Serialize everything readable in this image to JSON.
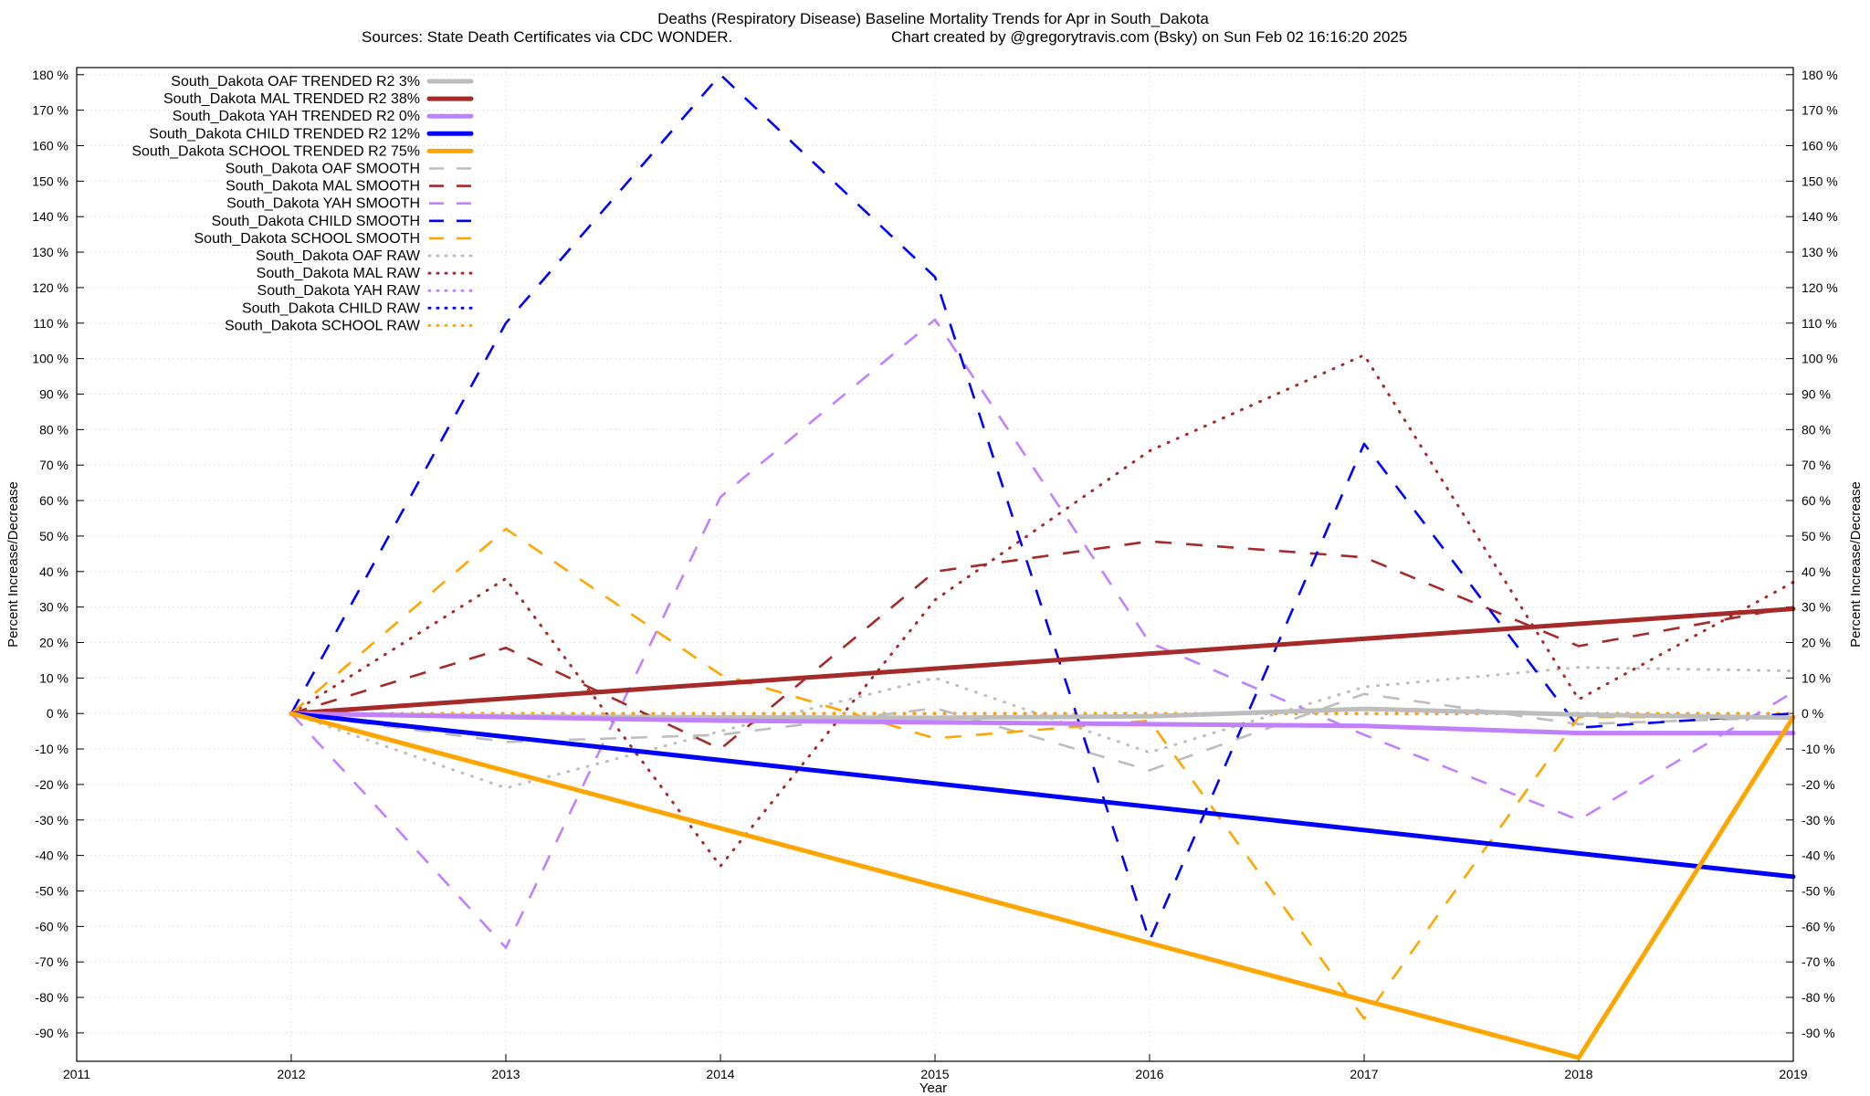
{
  "chart_data": {
    "type": "line",
    "title": "Deaths (Respiratory Disease)  Baseline Mortality Trends for Apr in South_Dakota",
    "subtitle_left": "Sources: State Death Certificates via CDC WONDER.",
    "subtitle_right": "Chart created by @gregorytravis.com (Bsky) on Sun Feb 02 16:16:20 2025",
    "xlabel": "Year",
    "ylabel": "Percent Increase/Decrease",
    "xlim": [
      2011,
      2019
    ],
    "ylim": [
      -98,
      182
    ],
    "x_ticks": [
      "2011",
      "2012",
      "2013",
      "2014",
      "2015",
      "2016",
      "2017",
      "2018",
      "2019"
    ],
    "y_ticks": [
      180,
      170,
      160,
      150,
      140,
      130,
      120,
      110,
      100,
      90,
      80,
      70,
      60,
      50,
      40,
      30,
      20,
      10,
      0,
      -10,
      -20,
      -30,
      -40,
      -50,
      -60,
      -70,
      -80,
      -90
    ],
    "y_tick_suffix": " %",
    "grid": true,
    "legend_position": "top-left",
    "series": [
      {
        "name": "South_Dakota OAF TRENDED R2  3%",
        "style": "solid",
        "color": "#bdbdbd",
        "x": [
          2012,
          2013,
          2014,
          2015,
          2016,
          2017,
          2018,
          2019
        ],
        "values": [
          0,
          -0.8,
          -1.1,
          -1.2,
          -0.8,
          1.3,
          -0.3,
          -1.2
        ]
      },
      {
        "name": "South_Dakota MAL TRENDED R2  38%",
        "style": "solid",
        "color": "#a52a2a",
        "x": [
          2012,
          2019
        ],
        "values": [
          0,
          29.5
        ]
      },
      {
        "name": "South_Dakota YAH TRENDED R2  0%",
        "style": "solid",
        "color": "#c080ff",
        "x": [
          2012,
          2013,
          2014,
          2015,
          2016,
          2017,
          2018,
          2019
        ],
        "values": [
          0,
          -1,
          -2,
          -2.5,
          -3,
          -3.5,
          -5.5,
          -5.5
        ]
      },
      {
        "name": "South_Dakota CHILD TRENDED R2  12%",
        "style": "solid",
        "color": "#0000ff",
        "x": [
          2012,
          2019
        ],
        "values": [
          0,
          -46
        ]
      },
      {
        "name": "South_Dakota SCHOOL TRENDED R2  75%",
        "style": "solid",
        "color": "#ffa500",
        "x": [
          2012,
          2018,
          2019
        ],
        "values": [
          0,
          -97,
          -1
        ]
      },
      {
        "name": "South_Dakota OAF SMOOTH",
        "style": "dashed",
        "color": "#bdbdbd",
        "x": [
          2012,
          2013,
          2014,
          2015,
          2016,
          2017,
          2018,
          2019
        ],
        "values": [
          0,
          -8,
          -6,
          1.5,
          -16,
          5.5,
          -3,
          -1
        ]
      },
      {
        "name": "South_Dakota MAL SMOOTH",
        "style": "dashed",
        "color": "#a52a2a",
        "x": [
          2012,
          2013,
          2014,
          2015,
          2016,
          2017,
          2018,
          2019
        ],
        "values": [
          0,
          18.5,
          -10,
          40,
          48.5,
          44,
          19,
          30
        ]
      },
      {
        "name": "South_Dakota YAH SMOOTH",
        "style": "dashed",
        "color": "#c080ff",
        "x": [
          2012,
          2013,
          2014,
          2015,
          2016,
          2017,
          2018,
          2019
        ],
        "values": [
          0,
          -66,
          61,
          111,
          20,
          -6,
          -30,
          6
        ]
      },
      {
        "name": "South_Dakota CHILD SMOOTH",
        "style": "dashed",
        "color": "#0000ff",
        "x": [
          2012,
          2013,
          2014,
          2015,
          2016,
          2017,
          2018,
          2019
        ],
        "values": [
          0,
          110,
          180,
          123,
          -64,
          76,
          -4,
          0
        ]
      },
      {
        "name": "South_Dakota SCHOOL SMOOTH",
        "style": "dashed",
        "color": "#ffa500",
        "x": [
          2012,
          2013,
          2014,
          2015,
          2016,
          2017,
          2018,
          2019
        ],
        "values": [
          0,
          52,
          11,
          -7,
          -2,
          -86,
          -1,
          -1
        ]
      },
      {
        "name": "South_Dakota OAF RAW",
        "style": "dotted",
        "color": "#bdbdbd",
        "x": [
          2012,
          2013,
          2014,
          2015,
          2016,
          2017,
          2018,
          2019
        ],
        "values": [
          0,
          -21,
          -5,
          10,
          -11,
          7.5,
          13,
          12
        ]
      },
      {
        "name": "South_Dakota MAL RAW",
        "style": "dotted",
        "color": "#a52a2a",
        "x": [
          2012,
          2013,
          2014,
          2015,
          2016,
          2017,
          2018,
          2019
        ],
        "values": [
          0,
          38,
          -43,
          32,
          74,
          101,
          4,
          37
        ]
      },
      {
        "name": "South_Dakota YAH RAW",
        "style": "dotted",
        "color": "#c080ff",
        "x": [
          2012,
          2013,
          2014,
          2015,
          2016,
          2017,
          2018,
          2019
        ],
        "values": [
          0,
          0,
          0,
          0,
          0,
          0,
          0,
          0
        ]
      },
      {
        "name": "South_Dakota CHILD RAW",
        "style": "dotted",
        "color": "#0000ff",
        "x": [
          2012,
          2013,
          2014,
          2015,
          2016,
          2017,
          2018,
          2019
        ],
        "values": [
          0,
          0,
          0,
          0,
          0,
          0,
          0,
          0
        ]
      },
      {
        "name": "South_Dakota SCHOOL RAW",
        "style": "dotted",
        "color": "#ffa500",
        "x": [
          2012,
          2013,
          2014,
          2015,
          2016,
          2017,
          2018,
          2019
        ],
        "values": [
          0,
          0,
          0,
          0,
          0,
          0,
          0,
          0
        ]
      }
    ]
  }
}
